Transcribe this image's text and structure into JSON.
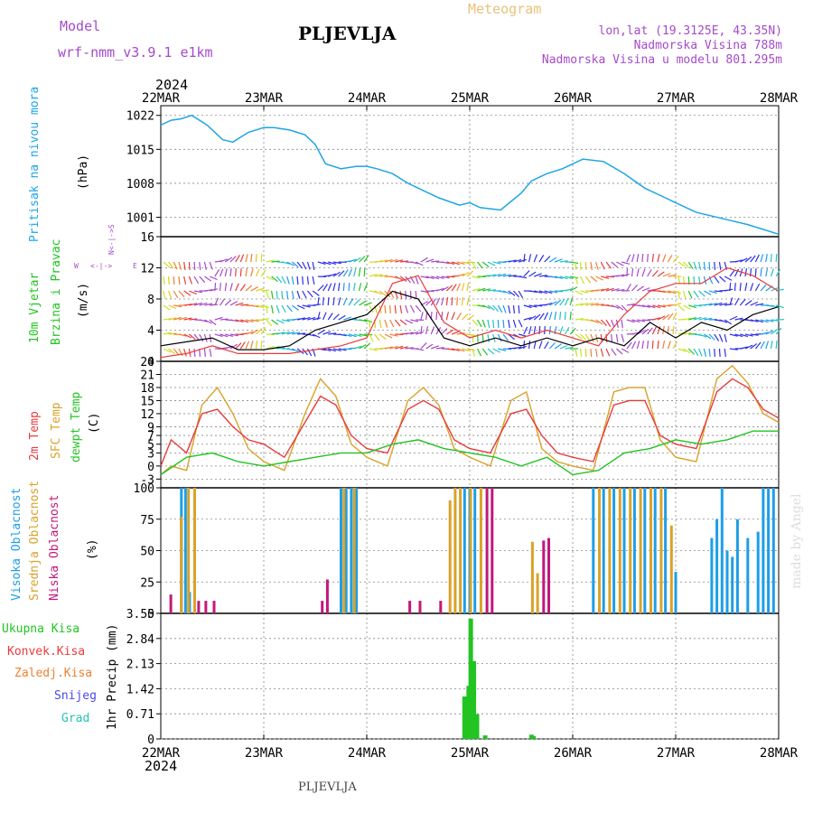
{
  "header": {
    "model_label": "Model",
    "model_name": "wrf-nmm_v3.9.1 e1km",
    "station": "PLJEVLJA",
    "meteogram": "Meteogram",
    "lonlat": "lon,lat (19.3125E, 43.35N)",
    "elevation": "Nadmorska Visina 788m",
    "model_elevation": "Nadmorska Visina u modelu 801.295m",
    "footer_station": "PLJEVLJA",
    "watermark": "made by Angel"
  },
  "colors": {
    "pressure": "#1ea5e6",
    "wind_speed": "#000000",
    "gust": "#e83b3b",
    "temp2m": "#e83b3b",
    "sfc_temp": "#d9a22a",
    "dewpoint": "#22c422",
    "cloud_high": "#1e9ee6",
    "cloud_mid": "#d9a22a",
    "cloud_low": "#c2187a",
    "precip_total": "#22c422",
    "precip_conv": "#e83b3b",
    "precip_frz": "#f08030",
    "snow": "#4a4ae6",
    "graupel": "#22c4b4",
    "purple_label": "#a64ac9"
  },
  "chart_data": [
    {
      "type": "line",
      "id": "pressure",
      "ylabel": "Pritisak na nivou mora",
      "unit": "(hPa)",
      "ylim": [
        997,
        1024
      ],
      "yticks": [
        1001,
        1008,
        1015,
        1022
      ],
      "xaxis": {
        "labels": [
          "22MAR",
          "23MAR",
          "24MAR",
          "25MAR",
          "26MAR",
          "27MAR",
          "28MAR"
        ],
        "year": "2024",
        "range_days": [
          0,
          6
        ]
      },
      "series": [
        {
          "values_x": [
            0,
            0.1,
            0.2,
            0.3,
            0.45,
            0.6,
            0.7,
            0.85,
            1.0,
            1.1,
            1.25,
            1.4,
            1.5,
            1.6,
            1.75,
            1.9,
            2.0,
            2.1,
            2.25,
            2.4,
            2.5,
            2.7,
            2.9,
            3.0,
            3.1,
            3.3,
            3.5,
            3.6,
            3.75,
            3.9,
            4.0,
            4.1,
            4.3,
            4.5,
            4.7,
            4.9,
            5.0,
            5.2,
            5.5,
            5.7,
            6.0
          ],
          "values_y": [
            1020,
            1021,
            1021.3,
            1022,
            1020,
            1017,
            1016.5,
            1018.5,
            1019.5,
            1019.5,
            1019,
            1018,
            1016,
            1012,
            1011,
            1011.5,
            1011.5,
            1011,
            1010,
            1008,
            1007,
            1005,
            1003.5,
            1004,
            1003,
            1002.5,
            1006,
            1008.5,
            1010,
            1011,
            1012,
            1013,
            1012.5,
            1010,
            1007,
            1005,
            1004,
            1002,
            1000.5,
            999.5,
            997.5
          ]
        }
      ]
    },
    {
      "type": "line",
      "id": "wind",
      "ylabel": "10m Vjetar Brzina i Pravac",
      "unit": "(m/s)",
      "ylim": [
        0,
        16
      ],
      "yticks": [
        0,
        4,
        8,
        12,
        16
      ],
      "series": [
        {
          "name": "speed",
          "values_x": [
            0,
            0.25,
            0.5,
            0.75,
            1.0,
            1.25,
            1.5,
            1.75,
            2.0,
            2.25,
            2.5,
            2.75,
            3.0,
            3.25,
            3.5,
            3.75,
            4.0,
            4.25,
            4.5,
            4.75,
            5.0,
            5.25,
            5.5,
            5.75,
            6.0
          ],
          "values_y": [
            2,
            2.5,
            3,
            1.5,
            1.5,
            2,
            4,
            5,
            6,
            9,
            8,
            3,
            2,
            3,
            2,
            3,
            2,
            3,
            2,
            5,
            3,
            5,
            4,
            6,
            7
          ]
        },
        {
          "name": "gust",
          "values_x": [
            0,
            0.25,
            0.5,
            0.75,
            1.0,
            1.25,
            1.5,
            1.75,
            2.0,
            2.25,
            2.5,
            2.75,
            3.0,
            3.25,
            3.5,
            3.75,
            4.0,
            4.25,
            4.5,
            4.75,
            5.0,
            5.25,
            5.5,
            5.75,
            6.0
          ],
          "values_y": [
            0.5,
            1,
            2,
            1,
            1,
            1,
            1.5,
            2,
            3,
            10,
            11,
            5,
            3,
            4,
            3,
            4,
            3,
            2,
            6,
            9,
            10,
            10,
            12,
            11,
            9
          ]
        }
      ]
    },
    {
      "type": "line",
      "id": "temperature",
      "ylabel": "2m Temp / SFC Temp / dewpt Temp",
      "unit": "(C)",
      "ylim": [
        -5,
        24
      ],
      "yticks": [
        -3,
        0,
        3,
        5,
        7,
        9,
        12,
        15,
        18,
        21,
        24
      ],
      "series": [
        {
          "name": "2m Temp",
          "values_x": [
            0,
            0.1,
            0.25,
            0.4,
            0.55,
            0.7,
            0.85,
            1.0,
            1.2,
            1.4,
            1.55,
            1.7,
            1.85,
            2.0,
            2.2,
            2.4,
            2.55,
            2.7,
            2.85,
            3.0,
            3.2,
            3.4,
            3.55,
            3.7,
            3.85,
            4.0,
            4.2,
            4.4,
            4.55,
            4.7,
            4.85,
            5.0,
            5.2,
            5.4,
            5.55,
            5.7,
            5.85,
            6.0
          ],
          "values_y": [
            0,
            6,
            3,
            12,
            13,
            9,
            6,
            5,
            2,
            10,
            16,
            14,
            7,
            4,
            3,
            13,
            15,
            13,
            6,
            4,
            3,
            12,
            13,
            7,
            3,
            2,
            1,
            14,
            15,
            15,
            7,
            5,
            4,
            17,
            20,
            18,
            13,
            11
          ]
        },
        {
          "name": "SFC Temp",
          "values_x": [
            0,
            0.1,
            0.25,
            0.4,
            0.55,
            0.7,
            0.85,
            1.0,
            1.2,
            1.4,
            1.55,
            1.7,
            1.85,
            2.0,
            2.2,
            2.4,
            2.55,
            2.7,
            2.85,
            3.0,
            3.2,
            3.4,
            3.55,
            3.7,
            3.85,
            4.0,
            4.2,
            4.4,
            4.55,
            4.7,
            4.85,
            5.0,
            5.2,
            5.4,
            5.55,
            5.7,
            5.85,
            6.0
          ],
          "values_y": [
            -2,
            0,
            -1,
            14,
            18,
            12,
            4,
            1,
            -1,
            12,
            20,
            16,
            5,
            2,
            0,
            15,
            18,
            14,
            4,
            2,
            0,
            15,
            17,
            4,
            1,
            0,
            -1,
            17,
            18,
            18,
            6,
            2,
            1,
            20,
            23,
            19,
            12,
            10
          ]
        },
        {
          "name": "dewpt Temp",
          "values_x": [
            0,
            0.25,
            0.5,
            0.75,
            1.0,
            1.25,
            1.5,
            1.75,
            2.0,
            2.25,
            2.5,
            2.75,
            3.0,
            3.25,
            3.5,
            3.75,
            4.0,
            4.25,
            4.5,
            4.75,
            5.0,
            5.25,
            5.5,
            5.75,
            6.0
          ],
          "values_y": [
            -2,
            2,
            3,
            1,
            0,
            1,
            2,
            3,
            3,
            5,
            6,
            4,
            3,
            2,
            0,
            2,
            -2,
            -1,
            3,
            4,
            6,
            5,
            6,
            8,
            8
          ]
        }
      ]
    },
    {
      "type": "bar",
      "id": "clouds",
      "ylabel": "Visoka Oblacnost / Srednja Oblacnost / Niska Oblacnost",
      "unit": "(%)",
      "ylim": [
        0,
        100
      ],
      "yticks": [
        0,
        25,
        50,
        75,
        100
      ],
      "series": [
        {
          "name": "Visoka Oblacnost",
          "values_x": [
            0.2,
            0.24,
            0.28,
            1.75,
            1.8,
            1.85,
            1.9,
            2.95,
            3.0,
            3.05,
            4.2,
            4.3,
            4.4,
            4.5,
            4.6,
            4.7,
            4.8,
            4.9,
            5.0,
            5.35,
            5.4,
            5.45,
            5.5,
            5.55,
            5.6,
            5.7,
            5.8,
            5.85,
            5.9,
            5.95
          ],
          "values_y": [
            100,
            100,
            17,
            100,
            100,
            100,
            100,
            100,
            100,
            100,
            100,
            100,
            100,
            100,
            100,
            100,
            100,
            100,
            33,
            60,
            75,
            100,
            50,
            45,
            75,
            60,
            65,
            100,
            100,
            100
          ]
        },
        {
          "name": "Srednja Oblacnost",
          "values_x": [
            0.19,
            0.26,
            0.32,
            1.77,
            1.87,
            2.8,
            2.85,
            2.9,
            3.0,
            3.1,
            3.6,
            3.65,
            4.25,
            4.35,
            4.45,
            4.55,
            4.65,
            4.75,
            4.85,
            4.95
          ],
          "values_y": [
            77,
            100,
            100,
            100,
            100,
            90,
            100,
            100,
            100,
            100,
            57,
            32,
            100,
            100,
            100,
            100,
            100,
            100,
            100,
            70
          ]
        },
        {
          "name": "Niska Oblacnost",
          "values_x": [
            0.08,
            0.35,
            0.42,
            0.5,
            1.55,
            1.6,
            2.4,
            2.5,
            2.7,
            3.15,
            3.2,
            3.7,
            3.75
          ],
          "values_y": [
            15,
            10,
            10,
            10,
            10,
            27,
            10,
            10,
            10,
            100,
            100,
            58,
            60
          ]
        }
      ]
    },
    {
      "type": "bar",
      "id": "precip",
      "ylabel": "1hr Precip",
      "unit": "(mm)",
      "ylim": [
        0,
        3.55
      ],
      "yticks": [
        0,
        0.71,
        1.42,
        2.13,
        2.84,
        3.55
      ],
      "legend": [
        "Ukupna Kisa",
        "Konvek.Kisa",
        "Zaledj.Kisa",
        "Snijeg",
        "Grad"
      ],
      "series": [
        {
          "name": "Ukupna Kisa",
          "values_x": [
            2.95,
            2.99,
            3.01,
            3.04,
            3.07,
            3.15,
            3.6,
            3.62
          ],
          "values_y": [
            1.2,
            1.5,
            3.4,
            2.2,
            0.7,
            0.1,
            0.12,
            0.08
          ]
        }
      ]
    }
  ]
}
